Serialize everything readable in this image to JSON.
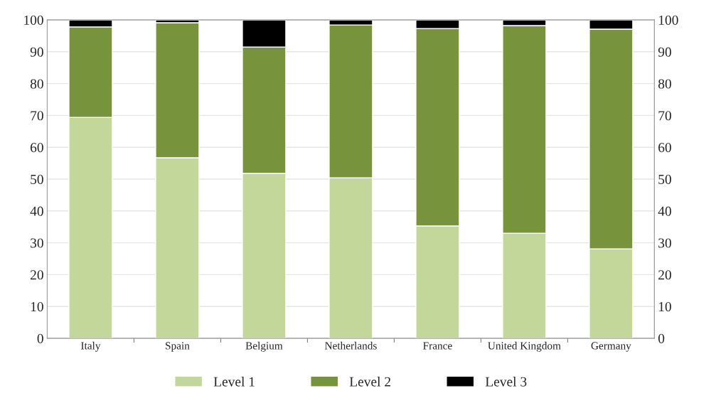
{
  "chart_data": {
    "type": "bar",
    "stacked": true,
    "categories": [
      "Italy",
      "Spain",
      "Belgium",
      "Netherlands",
      "France",
      "United Kingdom",
      "Germany"
    ],
    "series": [
      {
        "name": "Level 1",
        "color": "#c4d79b",
        "values": [
          69.4,
          56.7,
          51.8,
          50.4,
          35.3,
          33.0,
          28.1
        ]
      },
      {
        "name": "Level 2",
        "color": "#77933c",
        "values": [
          28.4,
          42.4,
          39.7,
          48.0,
          62.0,
          65.2,
          69.0
        ]
      },
      {
        "name": "Level 3",
        "color": "#000000",
        "values": [
          2.2,
          0.9,
          8.5,
          1.6,
          2.7,
          1.8,
          2.9
        ]
      }
    ],
    "ylim": [
      0,
      100
    ],
    "yticks": [
      0,
      10,
      20,
      30,
      40,
      50,
      60,
      70,
      80,
      90,
      100
    ],
    "y2lim": [
      0,
      100
    ],
    "y2ticks": [
      0,
      10,
      20,
      30,
      40,
      50,
      60,
      70,
      80,
      90,
      100
    ],
    "grid": "y",
    "legend": "bottom"
  }
}
